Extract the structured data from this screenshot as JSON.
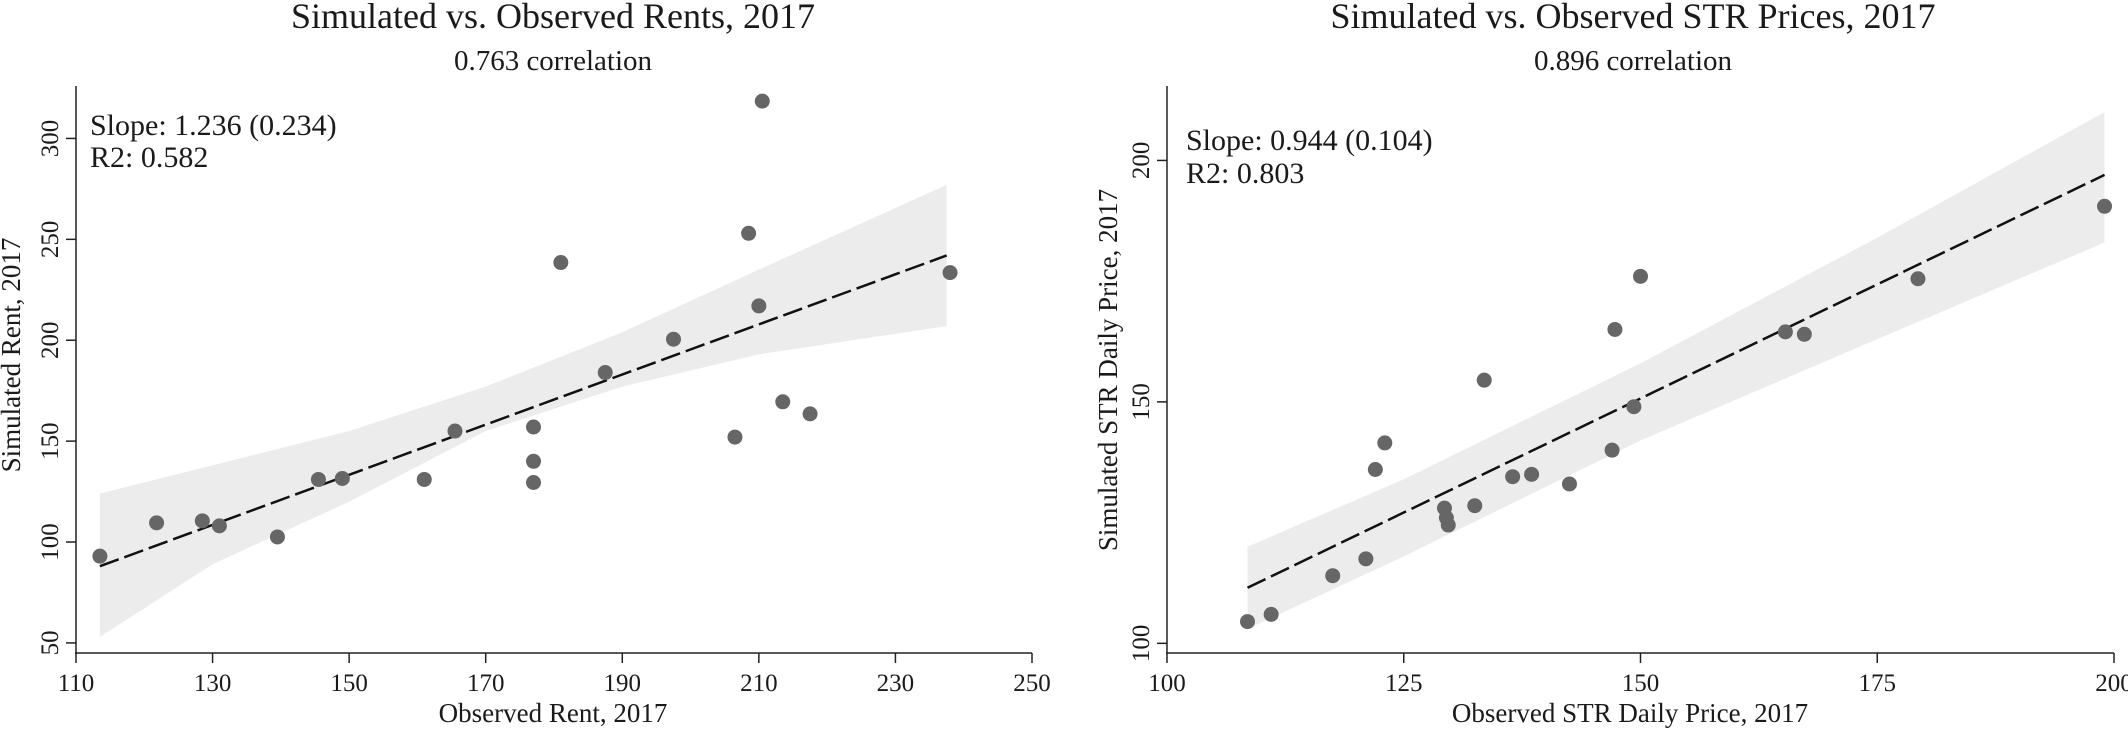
{
  "chart_data": [
    {
      "type": "scatter",
      "title": "Simulated vs. Observed Rents, 2017",
      "subtitle": "0.763 correlation",
      "xlabel": "Observed Rent, 2017",
      "ylabel": "Simulated Rent, 2017",
      "xlim": [
        110,
        250
      ],
      "ylim": [
        45,
        325
      ],
      "xticks": [
        110,
        130,
        150,
        170,
        190,
        210,
        230,
        250
      ],
      "yticks": [
        50,
        100,
        150,
        200,
        250,
        300
      ],
      "annotations": [
        "Slope: 1.236 (0.234)",
        "R2: 0.582"
      ],
      "points": [
        {
          "x": 113.5,
          "y": 93
        },
        {
          "x": 121.8,
          "y": 109.5
        },
        {
          "x": 128.5,
          "y": 110.5
        },
        {
          "x": 131,
          "y": 108
        },
        {
          "x": 139.5,
          "y": 102.5
        },
        {
          "x": 145.5,
          "y": 131
        },
        {
          "x": 149,
          "y": 131.5
        },
        {
          "x": 161,
          "y": 131
        },
        {
          "x": 165.5,
          "y": 155
        },
        {
          "x": 177,
          "y": 157
        },
        {
          "x": 177,
          "y": 140
        },
        {
          "x": 177,
          "y": 129.5
        },
        {
          "x": 181,
          "y": 238.5
        },
        {
          "x": 187.5,
          "y": 184
        },
        {
          "x": 197.5,
          "y": 200.5
        },
        {
          "x": 206.5,
          "y": 152
        },
        {
          "x": 208.5,
          "y": 253
        },
        {
          "x": 210,
          "y": 217
        },
        {
          "x": 210.5,
          "y": 318.5
        },
        {
          "x": 213.5,
          "y": 169.5
        },
        {
          "x": 217.5,
          "y": 163.5
        },
        {
          "x": 238,
          "y": 233.5
        }
      ],
      "fit_line": {
        "x": [
          113.5,
          237.5
        ],
        "y": [
          88,
          242
        ]
      },
      "confidence_band": {
        "x": [
          113.5,
          130,
          150,
          170,
          190,
          210,
          237.5
        ],
        "upper": [
          124,
          138,
          155,
          177,
          204,
          235,
          277
        ],
        "lower": [
          53,
          89,
          120,
          155,
          177,
          193,
          207
        ]
      },
      "colors": {
        "points": "#666666",
        "line": "#111111",
        "band": "#ececec",
        "axis": "#222222"
      }
    },
    {
      "type": "scatter",
      "title": "Simulated vs. Observed STR Prices, 2017",
      "subtitle": "0.896 correlation",
      "xlabel": "Observed STR Daily Price, 2017",
      "ylabel": "Simulated STR Daily Price, 2017",
      "xlim": [
        100,
        200
      ],
      "ylim": [
        98,
        215
      ],
      "xticks": [
        100,
        125,
        150,
        175,
        200
      ],
      "yticks": [
        100,
        150,
        200
      ],
      "annotations": [
        "Slope: 0.944 (0.104)",
        "R2: 0.803"
      ],
      "points": [
        {
          "x": 108.5,
          "y": 104.5
        },
        {
          "x": 111,
          "y": 106
        },
        {
          "x": 117.5,
          "y": 114
        },
        {
          "x": 121,
          "y": 117.5
        },
        {
          "x": 122,
          "y": 136
        },
        {
          "x": 123,
          "y": 141.5
        },
        {
          "x": 129.3,
          "y": 128
        },
        {
          "x": 129.5,
          "y": 126
        },
        {
          "x": 129.7,
          "y": 124.5
        },
        {
          "x": 132.5,
          "y": 128.5
        },
        {
          "x": 133.5,
          "y": 154.5
        },
        {
          "x": 136.5,
          "y": 134.5
        },
        {
          "x": 138.5,
          "y": 135
        },
        {
          "x": 142.5,
          "y": 133
        },
        {
          "x": 147,
          "y": 140
        },
        {
          "x": 147.3,
          "y": 165
        },
        {
          "x": 149.3,
          "y": 149
        },
        {
          "x": 150,
          "y": 176
        },
        {
          "x": 165.3,
          "y": 164.5
        },
        {
          "x": 167.3,
          "y": 164
        },
        {
          "x": 179.3,
          "y": 175.5
        },
        {
          "x": 199,
          "y": 190.5
        }
      ],
      "fit_line": {
        "x": [
          108.5,
          199
        ],
        "y": [
          111.5,
          197
        ]
      },
      "confidence_band": {
        "x": [
          108.5,
          125,
          150,
          175,
          199
        ],
        "upper": [
          120,
          134,
          158,
          184,
          210
        ],
        "lower": [
          103,
          118,
          142,
          163,
          183
        ]
      },
      "colors": {
        "points": "#666666",
        "line": "#111111",
        "band": "#ececec",
        "axis": "#222222"
      }
    }
  ]
}
